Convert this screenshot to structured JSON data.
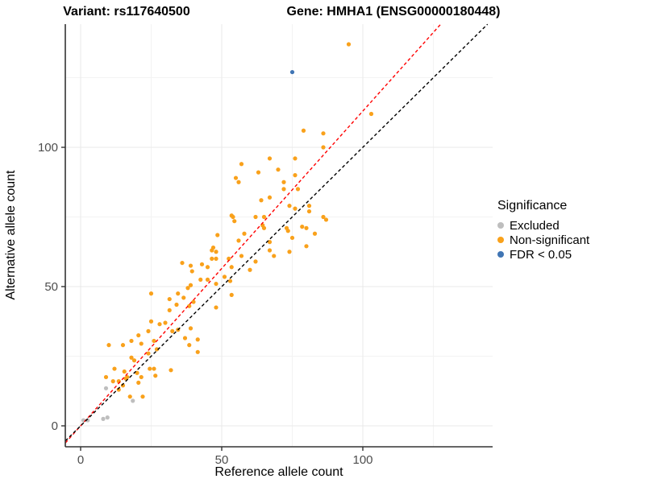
{
  "titles": {
    "variant": "Variant: rs117640500",
    "gene": "Gene: HMHA1 (ENSG00000180448)"
  },
  "chart_data": {
    "type": "scatter",
    "xlabel": "Reference allele count",
    "ylabel": "Alternative allele count",
    "xlim": [
      -5.4,
      146
    ],
    "ylim": [
      -7.5,
      144.2
    ],
    "x_ticks": [
      0,
      50,
      100
    ],
    "y_ticks": [
      0,
      50,
      100
    ],
    "x_minor_ticks": [
      25,
      75,
      125
    ],
    "y_minor_ticks": [
      25,
      75,
      125
    ],
    "grid": "on",
    "colors": {
      "excluded": "#BEBEBE",
      "non_significant": "#F9A11B",
      "fdr": "#4075B4",
      "identity_line": "#000000",
      "fit_line": "#FF0000",
      "axis_line": "#333333",
      "tick_label": "#4D4D4D",
      "grid_major": "#E8E8E8",
      "grid_minor": "#F3F3F3"
    },
    "legend": {
      "title": "Significance",
      "position": "right",
      "entries": [
        {
          "label": "Excluded",
          "color": "#BEBEBE"
        },
        {
          "label": "Non-significant",
          "color": "#F9A11B"
        },
        {
          "label": "FDR < 0.05",
          "color": "#4075B4"
        }
      ]
    },
    "lines": [
      {
        "name": "fit-line",
        "slope": 1.13,
        "intercept": 0,
        "color": "#FF0000",
        "dash": "4,3"
      },
      {
        "name": "identity-line",
        "slope": 1.0,
        "intercept": 0,
        "color": "#000000",
        "dash": "4,3"
      }
    ],
    "series": [
      {
        "name": "Excluded",
        "color": "#BEBEBE",
        "points": [
          [
            1,
            2
          ],
          [
            2.5,
            2
          ],
          [
            8,
            2.5
          ],
          [
            9.5,
            3
          ],
          [
            9,
            13.5
          ],
          [
            18.5,
            9
          ]
        ]
      },
      {
        "name": "Non-significant",
        "color": "#F9A11B",
        "points": [
          [
            95,
            137
          ],
          [
            103,
            112
          ],
          [
            86,
            105
          ],
          [
            79,
            106
          ],
          [
            86,
            100
          ],
          [
            67,
            96
          ],
          [
            76,
            96
          ],
          [
            57,
            94
          ],
          [
            70,
            92
          ],
          [
            63,
            91
          ],
          [
            55,
            89
          ],
          [
            56,
            87.5
          ],
          [
            72,
            87.5
          ],
          [
            76,
            90
          ],
          [
            72,
            85
          ],
          [
            77,
            85
          ],
          [
            67,
            82
          ],
          [
            64,
            81
          ],
          [
            74,
            79
          ],
          [
            76,
            78
          ],
          [
            81,
            79
          ],
          [
            81,
            77
          ],
          [
            86,
            75
          ],
          [
            87,
            74
          ],
          [
            62,
            75
          ],
          [
            65,
            75
          ],
          [
            53.5,
            75.5
          ],
          [
            54,
            75
          ],
          [
            54.5,
            73.5
          ],
          [
            64.5,
            72
          ],
          [
            65,
            71
          ],
          [
            58,
            69
          ],
          [
            48.5,
            68.5
          ],
          [
            56,
            66.5
          ],
          [
            73,
            71
          ],
          [
            73.5,
            70
          ],
          [
            78.5,
            71.5
          ],
          [
            80,
            71
          ],
          [
            75,
            67.5
          ],
          [
            67,
            66
          ],
          [
            67,
            63
          ],
          [
            68.5,
            61
          ],
          [
            74,
            62.5
          ],
          [
            80,
            64.5
          ],
          [
            83,
            69
          ],
          [
            47,
            64
          ],
          [
            46.5,
            63
          ],
          [
            48,
            62.5
          ],
          [
            46.5,
            60
          ],
          [
            48,
            60
          ],
          [
            43,
            58
          ],
          [
            39,
            57.5
          ],
          [
            45,
            57
          ],
          [
            52.5,
            60
          ],
          [
            53.5,
            57
          ],
          [
            60,
            56
          ],
          [
            62,
            59
          ],
          [
            36,
            58.5
          ],
          [
            57,
            61
          ],
          [
            39.5,
            55.5
          ],
          [
            42.5,
            52.5
          ],
          [
            45,
            52.5
          ],
          [
            51,
            53.5
          ],
          [
            53,
            52
          ],
          [
            48,
            51
          ],
          [
            38,
            49.5
          ],
          [
            39,
            50.5
          ],
          [
            25,
            47.5
          ],
          [
            34.5,
            47.5
          ],
          [
            31.5,
            45.5
          ],
          [
            36.5,
            46
          ],
          [
            40,
            44.5
          ],
          [
            38.5,
            43
          ],
          [
            31.5,
            41.5
          ],
          [
            34,
            43.5
          ],
          [
            48,
            42.5
          ],
          [
            53.5,
            47
          ],
          [
            25,
            37.5
          ],
          [
            28,
            36.5
          ],
          [
            30,
            37
          ],
          [
            32.5,
            34
          ],
          [
            34.5,
            34.5
          ],
          [
            37,
            31.5
          ],
          [
            20.5,
            32.5
          ],
          [
            18,
            30.5
          ],
          [
            21.5,
            29.5
          ],
          [
            15,
            29
          ],
          [
            10,
            29
          ],
          [
            24,
            34
          ],
          [
            39,
            35
          ],
          [
            41.5,
            31
          ],
          [
            38.5,
            29
          ],
          [
            41.5,
            26.5
          ],
          [
            18,
            24.5
          ],
          [
            24,
            26
          ],
          [
            19,
            23.5
          ],
          [
            12,
            20.5
          ],
          [
            16.5,
            17.5
          ],
          [
            20,
            19
          ],
          [
            24.5,
            20.5
          ],
          [
            26.5,
            18
          ],
          [
            26,
            20.5
          ],
          [
            32,
            20
          ],
          [
            9,
            17.5
          ],
          [
            26,
            30.5
          ],
          [
            27,
            27.5
          ],
          [
            16,
            17
          ],
          [
            21.5,
            17.5
          ],
          [
            15.5,
            19.5
          ],
          [
            11.5,
            16
          ],
          [
            13.5,
            16
          ],
          [
            15,
            14.5
          ],
          [
            20.5,
            15.5
          ],
          [
            17.5,
            10.5
          ],
          [
            22,
            10.5
          ],
          [
            13.5,
            13
          ]
        ]
      },
      {
        "name": "FDR < 0.05",
        "color": "#4075B4",
        "points": [
          [
            75,
            127
          ]
        ]
      }
    ]
  }
}
